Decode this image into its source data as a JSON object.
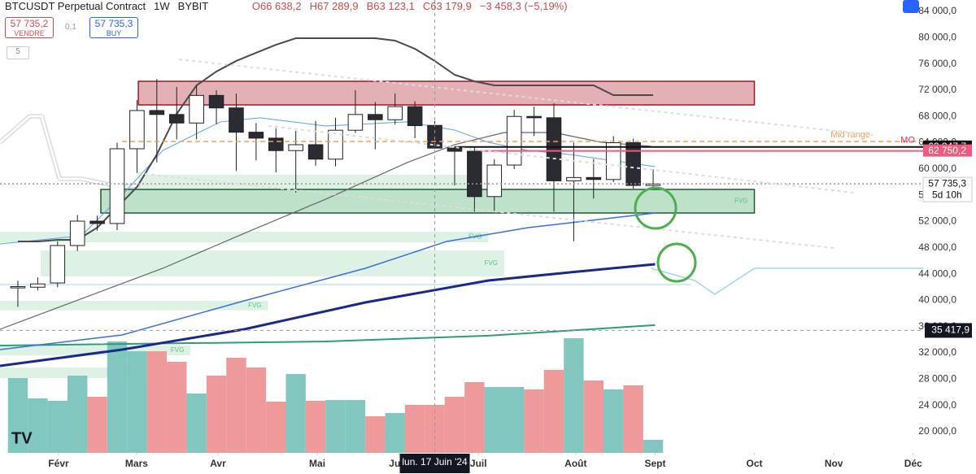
{
  "header": {
    "symbol": "BTCUSDT Perpetual Contract",
    "interval": "1W",
    "exchange": "BYBIT",
    "open": "O66 638,2",
    "high": "H67 289,9",
    "low": "B63 123,1",
    "close": "C63 179,9",
    "change": "−3 458,3 (−5,19%)"
  },
  "trade": {
    "sell_price": "57 735,2",
    "sell_label": "VENDRE",
    "spread": "0,1",
    "buy_price": "57 735,3",
    "buy_label": "BUY",
    "badge": "5"
  },
  "chart_data": {
    "type": "candlestick",
    "xlim": [
      -0.9,
      45.6
    ],
    "xticks": [
      {
        "value": 2.05,
        "label": "Févr"
      },
      {
        "value": 5.98,
        "label": "Mars"
      },
      {
        "value": 10.08,
        "label": "Avr"
      },
      {
        "value": 15.08,
        "label": "Mai"
      },
      {
        "value": 19.2,
        "label": "Juin"
      },
      {
        "value": 23.2,
        "label": "Juil"
      },
      {
        "value": 28.1,
        "label": "Août"
      },
      {
        "value": 32.1,
        "label": "Sept"
      },
      {
        "value": 37.1,
        "label": "Oct"
      },
      {
        "value": 41.1,
        "label": "Nov"
      },
      {
        "value": 45.1,
        "label": "Déc"
      }
    ],
    "ylim": [
      16780,
      85730
    ],
    "yticks": [
      {
        "value": 20000,
        "label": "20 000,0"
      },
      {
        "value": 24000,
        "label": "24 000,0"
      },
      {
        "value": 28000,
        "label": "28 000,0"
      },
      {
        "value": 32000,
        "label": "32 000,0"
      },
      {
        "value": 36000,
        "label": "36 000,0"
      },
      {
        "value": 40000,
        "label": "40 000,0"
      },
      {
        "value": 44000,
        "label": "44 000,0"
      },
      {
        "value": 48000,
        "label": "48 000,0"
      },
      {
        "value": 52000,
        "label": "52 000,0"
      },
      {
        "value": 56000,
        "label": "56 000,0"
      },
      {
        "value": 60000,
        "label": "60 000,0"
      },
      {
        "value": 64000,
        "label": "64 000,0"
      },
      {
        "value": 68000,
        "label": "68 000,0"
      },
      {
        "value": 72000,
        "label": "72 000,0"
      },
      {
        "value": 76000,
        "label": "76 000,0"
      },
      {
        "value": 80000,
        "label": "80 000,0"
      },
      {
        "value": 84000,
        "label": "84 000,0"
      }
    ],
    "grid": false,
    "up_color": "#ffffff",
    "down_color": "#2b2b33",
    "x": [
      0,
      1,
      2,
      3,
      4,
      5,
      6,
      7,
      8,
      9,
      10,
      11,
      12,
      13,
      14,
      15,
      16,
      17,
      18,
      19,
      20,
      21,
      22,
      23,
      24,
      25,
      26,
      27,
      28,
      29,
      30,
      31,
      32
    ],
    "open": [
      41900,
      42000,
      42650,
      48350,
      52060,
      51700,
      63080,
      68900,
      68300,
      67000,
      71200,
      69300,
      65600,
      64700,
      62800,
      63700,
      61500,
      65900,
      68300,
      67500,
      69500,
      66638.2,
      63180,
      62700,
      55800,
      60600,
      68000,
      67800,
      58200,
      58700,
      58400,
      64000,
      57500
    ],
    "high": [
      43000,
      43500,
      49000,
      53000,
      52900,
      64000,
      70500,
      73700,
      72500,
      72700,
      72000,
      71500,
      67000,
      66200,
      65800,
      67300,
      67800,
      72000,
      70200,
      71500,
      70300,
      67289.9,
      63400,
      63300,
      61500,
      69000,
      69500,
      70000,
      64000,
      61500,
      65000,
      64600,
      60000
    ],
    "low": [
      39000,
      41500,
      42000,
      47500,
      50600,
      50700,
      59400,
      61000,
      64500,
      64500,
      66800,
      59700,
      61300,
      59500,
      56400,
      60500,
      60400,
      65500,
      63000,
      66800,
      64700,
      63123.1,
      57500,
      53500,
      53500,
      60000,
      65000,
      53500,
      49000,
      55500,
      58000,
      57000,
      57000
    ],
    "close": [
      42100,
      42500,
      48350,
      52060,
      51700,
      63080,
      68900,
      68300,
      67000,
      71200,
      69300,
      65600,
      64700,
      62800,
      63700,
      61500,
      65900,
      68300,
      67500,
      69500,
      66600,
      63179.9,
      62700,
      55800,
      60600,
      68000,
      67800,
      58200,
      58700,
      58400,
      64000,
      57500,
      57735.3
    ],
    "volume": {
      "ylim": [
        0,
        160
      ],
      "up_color": "#82c6c0",
      "down_color": "#ef9a9a",
      "values": [
        92,
        67,
        64,
        95,
        69,
        137,
        125,
        125,
        112,
        73,
        95,
        117,
        105,
        63,
        97,
        64,
        65,
        65,
        45,
        49,
        59,
        59,
        69,
        87,
        81,
        81,
        78,
        102,
        141,
        89,
        78,
        83,
        16
      ]
    },
    "lines": [
      {
        "color": "#fff",
        "width": 3,
        "x": [
          -0.9,
          0.6,
          1.2,
          2.1,
          3.2,
          4.2,
          5.25,
          6.1
        ],
        "values": [
          64070,
          68030,
          68030,
          58500,
          58500,
          57880,
          57260,
          57500
        ]
      },
      {
        "color": "#2a9d7a",
        "width": 2,
        "x": [
          -0.9,
          15.5,
          23.7,
          32.1
        ],
        "values": [
          33120,
          33740,
          34620,
          36230
        ]
      },
      {
        "color": "#bfe3f5",
        "width": 1.5,
        "x": [
          -0.9,
          33.9
        ],
        "values": [
          42400,
          42400
        ]
      },
      {
        "color": "#9fd4ef",
        "width": 1.5,
        "x": [
          31.9,
          34.1,
          35.1,
          37.1,
          45.6
        ],
        "values": [
          44880,
          43020,
          40920,
          44880,
          44880
        ]
      },
      {
        "color": "#5aa0f0",
        "width": 1,
        "x": [
          -0.9,
          3.2,
          5.25,
          7.3,
          10.2,
          12.2,
          15.5,
          19.6,
          22.0,
          23.7,
          25.7,
          27.8,
          32.1
        ],
        "values": [
          48590,
          49830,
          56020,
          62830,
          67170,
          67790,
          66550,
          67170,
          65930,
          64070,
          62830,
          62210,
          60350
        ]
      },
      {
        "color": "#666",
        "width": 1.2,
        "x": [
          -0.9,
          7.3,
          11.4,
          15.5,
          19.6,
          22.0,
          24.5,
          27.0,
          29.4,
          31.9
        ],
        "values": [
          35600,
          44880,
          50200,
          55400,
          60970,
          63700,
          65550,
          65550,
          64070,
          63450
        ]
      },
      {
        "color": "#3a6fe0",
        "width": 1.5,
        "x": [
          -0.9,
          5.25,
          11.4,
          17.5,
          21.6,
          25.7,
          32.1
        ],
        "values": [
          32500,
          34730,
          39930,
          44880,
          48970,
          51070,
          53300
        ]
      },
      {
        "color": "#1a2a8a",
        "width": 3,
        "x": [
          -0.9,
          5.25,
          11.4,
          17.5,
          23.7,
          27.8,
          32.1
        ],
        "values": [
          30030,
          32500,
          35600,
          39680,
          43020,
          44260,
          45500
        ]
      },
      {
        "color": "#4a4a4a",
        "width": 2,
        "x": [
          0,
          1,
          2,
          3,
          4,
          5,
          6,
          7,
          8,
          9,
          10,
          11,
          12,
          13,
          14,
          15,
          16,
          17,
          18,
          19,
          20,
          21,
          22,
          23,
          24,
          25,
          26,
          27,
          28,
          29,
          30,
          31,
          32
        ],
        "values": [
          48970,
          48970,
          49210,
          49210,
          51070,
          54160,
          57260,
          62210,
          68400,
          72730,
          74840,
          76450,
          77690,
          78920,
          79910,
          79910,
          79910,
          79910,
          79910,
          79540,
          78300,
          76450,
          74340,
          73350,
          72730,
          72730,
          72730,
          72730,
          72730,
          72730,
          71250,
          71250,
          71250
        ]
      }
    ],
    "zones": [
      {
        "x": [
          6.07,
          23.3
        ],
        "y": [
          56890,
          59120
        ],
        "color": "rgba(120,200,150,0.25)"
      },
      {
        "x": [
          -0.9,
          23.7
        ],
        "y": [
          48840,
          50450
        ],
        "color": "rgba(120,200,150,0.25)",
        "label": "FVG"
      },
      {
        "x": [
          1.15,
          24.5
        ],
        "y": [
          43640,
          47600
        ],
        "color": "rgba(120,200,150,0.25)",
        "label": "FVG"
      },
      {
        "x": [
          -0.9,
          12.6
        ],
        "y": [
          38480,
          39930
        ],
        "color": "rgba(120,200,150,0.25)",
        "label": "FVG"
      },
      {
        "x": [
          -0.9,
          8.7
        ],
        "y": [
          31630,
          33120
        ],
        "color": "rgba(120,200,150,0.25)",
        "label": "FVG"
      },
      {
        "x": [
          -0.9,
          8.5
        ],
        "y": [
          28160,
          29770
        ],
        "color": "rgba(120,200,150,0.25)",
        "label": "FVG"
      },
      {
        "x": [
          4.18,
          37.1
        ],
        "y": [
          53300,
          56890
        ],
        "color": "rgba(70,170,100,0.35)",
        "border": "#1e5b30",
        "label": "FVG"
      },
      {
        "x": [
          6.07,
          37.1
        ],
        "y": [
          69760,
          73350
        ],
        "color": "rgba(190,80,90,0.45)",
        "border": "#a01822"
      }
    ],
    "price_lines": [
      {
        "value": 64190,
        "from": 5.25,
        "color": "#f5a05a",
        "style": "dashed",
        "text": "Mid range"
      },
      {
        "value": 63347.7,
        "label": "63 347,7",
        "from": 22.0,
        "color": "#111",
        "style": "solid",
        "text": "MO"
      },
      {
        "value": 62750.2,
        "label": "62 750,2",
        "from": 23.3,
        "color": "#f05a7e",
        "style": "solid"
      },
      {
        "value": 57735.3,
        "label": "57 735,3",
        "from": -0.9,
        "color": "#999",
        "style": "dotted",
        "countdown": "5d 10h"
      }
    ],
    "crosshair": {
      "x": 21,
      "x_label": "lun. 17 Juin '24",
      "y": {
        "value": 35417.9,
        "label": "35 417,9"
      }
    }
  }
}
